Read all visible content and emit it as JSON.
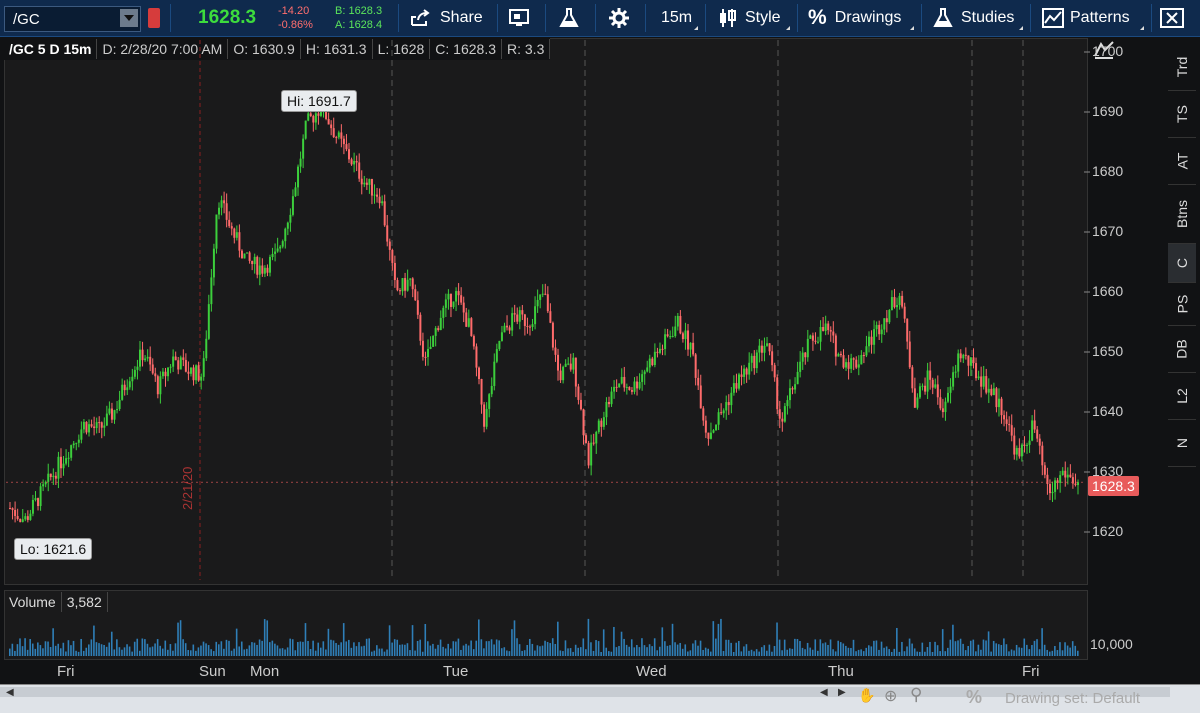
{
  "toolbar": {
    "symbol": "/GC",
    "last": "1628.3",
    "change": "-14.20",
    "change_pct": "-0.86%",
    "bid": "B: 1628.3",
    "ask": "A: 1628.4",
    "share": "Share",
    "timeframe": "15m",
    "style": "Style",
    "drawings": "Drawings",
    "studies": "Studies",
    "patterns": "Patterns"
  },
  "infobar": {
    "title": "/GC 5 D 15m",
    "date": "D: 2/28/20 7:00 AM",
    "open": "O: 1630.9",
    "high": "H: 1631.3",
    "low": "L: 1628",
    "close": "C: 1628.3",
    "range": "R: 3.3"
  },
  "annotations": {
    "hi": "Hi: 1691.7",
    "lo": "Lo: 1621.6",
    "date_marker": "2/21/20",
    "last_price": "1628.3"
  },
  "volume": {
    "label": "Volume",
    "value": "3,582",
    "axis_tick": "10,000"
  },
  "right_tabs": [
    "Trd",
    "TS",
    "AT",
    "Btns",
    "C",
    "PS",
    "DB",
    "L2",
    "N"
  ],
  "day_labels": [
    "Fri",
    "Sun",
    "Mon",
    "Tue",
    "Wed",
    "Thu",
    "Fri"
  ],
  "bottom": {
    "drawing_set": "Drawing set: Default"
  },
  "colors": {
    "up": "#3ccf3c",
    "down": "#ff6b6b",
    "volume": "#2f7fb8",
    "toolbar": "#0f2a4d"
  },
  "chart_data": {
    "type": "candlestick",
    "ylim": [
      1612,
      1702
    ],
    "yticks": [
      1620,
      1630,
      1640,
      1650,
      1660,
      1670,
      1680,
      1690,
      1700
    ],
    "high": 1691.7,
    "low": 1621.6,
    "last": 1628.3,
    "price_path": [
      1624,
      1622,
      1626,
      1630,
      1634,
      1638,
      1637,
      1640,
      1646,
      1650,
      1644,
      1649,
      1647,
      1646,
      1676,
      1670,
      1665,
      1664,
      1666,
      1675,
      1688,
      1691,
      1686,
      1682,
      1678,
      1676,
      1660,
      1662,
      1648,
      1656,
      1660,
      1654,
      1638,
      1652,
      1656,
      1655,
      1660,
      1646,
      1648,
      1632,
      1640,
      1645,
      1644,
      1648,
      1651,
      1655,
      1650,
      1636,
      1640,
      1645,
      1648,
      1652,
      1638,
      1646,
      1652,
      1654,
      1649,
      1648,
      1652,
      1656,
      1660,
      1642,
      1646,
      1640,
      1650,
      1647,
      1644,
      1640,
      1632,
      1638,
      1626,
      1630,
      1628
    ]
  }
}
